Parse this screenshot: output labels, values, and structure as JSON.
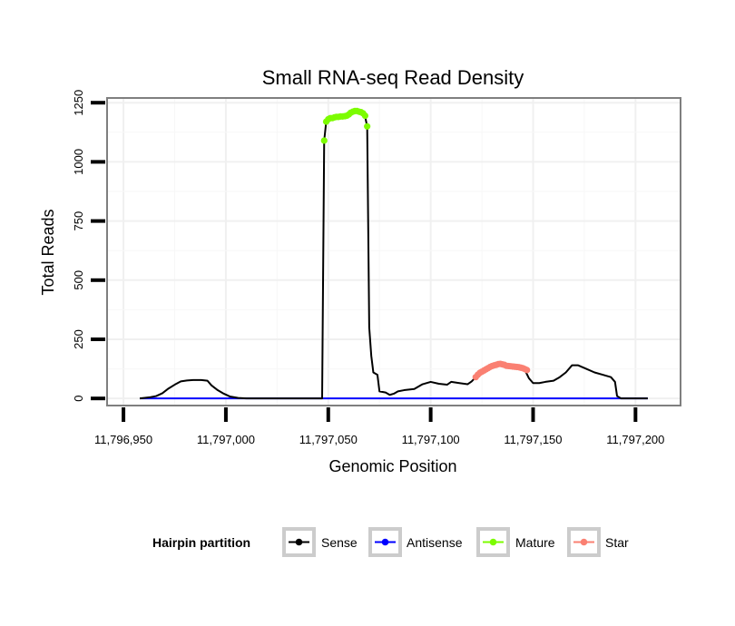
{
  "chart_data": {
    "type": "line",
    "title": "Small RNA-seq Read Density",
    "xlabel": "Genomic Position",
    "ylabel": "Total Reads",
    "xlim": [
      11796942,
      11797222
    ],
    "ylim": [
      -30,
      1270
    ],
    "x_ticks": [
      11796950,
      11797000,
      11797050,
      11797100,
      11797150,
      11797200
    ],
    "x_tick_labels": [
      "11,796,950",
      "11,797,000",
      "11,797,050",
      "11,797,100",
      "11,797,150",
      "11,797,200"
    ],
    "y_ticks": [
      0,
      250,
      500,
      750,
      1000,
      1250
    ],
    "y_tick_labels": [
      "0",
      "250",
      "500",
      "750",
      "1000",
      "1250"
    ],
    "grid": true,
    "legend": {
      "title": "Hairpin partition",
      "position": "bottom",
      "entries": [
        {
          "name": "Sense",
          "color": "#000000"
        },
        {
          "name": "Antisense",
          "color": "#0000ff"
        },
        {
          "name": "Mature",
          "color": "#7cfc00"
        },
        {
          "name": "Star",
          "color": "#fa8072"
        }
      ]
    },
    "series": [
      {
        "name": "Sense",
        "style": "line",
        "color": "#000000",
        "points": [
          [
            11796958,
            0
          ],
          [
            11796963,
            5
          ],
          [
            11796966,
            10
          ],
          [
            11796969,
            22
          ],
          [
            11796972,
            42
          ],
          [
            11796975,
            58
          ],
          [
            11796978,
            72
          ],
          [
            11796981,
            76
          ],
          [
            11796984,
            78
          ],
          [
            11796988,
            78
          ],
          [
            11796991,
            75
          ],
          [
            11796993,
            55
          ],
          [
            11796996,
            35
          ],
          [
            11796999,
            20
          ],
          [
            11797002,
            8
          ],
          [
            11797006,
            2
          ],
          [
            11797010,
            0
          ],
          [
            11797047,
            0
          ],
          [
            11797048,
            1090
          ],
          [
            11797049,
            1170
          ],
          [
            11797052,
            1190
          ],
          [
            11797056,
            1195
          ],
          [
            11797060,
            1200
          ],
          [
            11797063,
            1215
          ],
          [
            11797066,
            1210
          ],
          [
            11797068,
            1190
          ],
          [
            11797069,
            1150
          ],
          [
            11797070,
            300
          ],
          [
            11797071,
            180
          ],
          [
            11797072,
            110
          ],
          [
            11797074,
            100
          ],
          [
            11797075,
            30
          ],
          [
            11797078,
            25
          ],
          [
            11797080,
            15
          ],
          [
            11797082,
            20
          ],
          [
            11797084,
            30
          ],
          [
            11797087,
            35
          ],
          [
            11797092,
            40
          ],
          [
            11797096,
            60
          ],
          [
            11797100,
            70
          ],
          [
            11797104,
            62
          ],
          [
            11797108,
            58
          ],
          [
            11797110,
            70
          ],
          [
            11797114,
            65
          ],
          [
            11797118,
            60
          ],
          [
            11797120,
            72
          ],
          [
            11797122,
            90
          ],
          [
            11797126,
            115
          ],
          [
            11797130,
            135
          ],
          [
            11797134,
            145
          ],
          [
            11797138,
            135
          ],
          [
            11797142,
            125
          ],
          [
            11797146,
            120
          ],
          [
            11797148,
            85
          ],
          [
            11797150,
            65
          ],
          [
            11797153,
            65
          ],
          [
            11797156,
            70
          ],
          [
            11797160,
            75
          ],
          [
            11797163,
            90
          ],
          [
            11797166,
            110
          ],
          [
            11797169,
            140
          ],
          [
            11797172,
            140
          ],
          [
            11797176,
            125
          ],
          [
            11797180,
            110
          ],
          [
            11797184,
            100
          ],
          [
            11797188,
            90
          ],
          [
            11797190,
            70
          ],
          [
            11797191,
            10
          ],
          [
            11797193,
            0
          ],
          [
            11797206,
            0
          ]
        ]
      },
      {
        "name": "Antisense",
        "style": "line",
        "color": "#0000ff",
        "points": [
          [
            11796958,
            0
          ],
          [
            11797206,
            0
          ]
        ]
      },
      {
        "name": "Mature",
        "style": "points",
        "color": "#7cfc00",
        "points": [
          [
            11797048,
            1090
          ],
          [
            11797049,
            1170
          ],
          [
            11797050,
            1180
          ],
          [
            11797051,
            1185
          ],
          [
            11797052,
            1185
          ],
          [
            11797053,
            1188
          ],
          [
            11797054,
            1190
          ],
          [
            11797055,
            1190
          ],
          [
            11797056,
            1192
          ],
          [
            11797057,
            1192
          ],
          [
            11797058,
            1193
          ],
          [
            11797059,
            1195
          ],
          [
            11797060,
            1200
          ],
          [
            11797061,
            1208
          ],
          [
            11797062,
            1212
          ],
          [
            11797063,
            1215
          ],
          [
            11797064,
            1215
          ],
          [
            11797065,
            1212
          ],
          [
            11797066,
            1210
          ],
          [
            11797067,
            1205
          ],
          [
            11797068,
            1195
          ],
          [
            11797069,
            1150
          ]
        ]
      },
      {
        "name": "Star",
        "style": "points",
        "color": "#fa8072",
        "points": [
          [
            11797122,
            90
          ],
          [
            11797123,
            100
          ],
          [
            11797124,
            108
          ],
          [
            11797125,
            113
          ],
          [
            11797126,
            118
          ],
          [
            11797127,
            123
          ],
          [
            11797128,
            128
          ],
          [
            11797129,
            133
          ],
          [
            11797130,
            137
          ],
          [
            11797131,
            140
          ],
          [
            11797132,
            142
          ],
          [
            11797133,
            145
          ],
          [
            11797134,
            146
          ],
          [
            11797135,
            144
          ],
          [
            11797136,
            142
          ],
          [
            11797137,
            138
          ],
          [
            11797138,
            137
          ],
          [
            11797139,
            136
          ],
          [
            11797140,
            135
          ],
          [
            11797141,
            134
          ],
          [
            11797142,
            133
          ],
          [
            11797143,
            132
          ],
          [
            11797144,
            130
          ],
          [
            11797145,
            128
          ],
          [
            11797146,
            124
          ],
          [
            11797147,
            120
          ]
        ]
      }
    ]
  }
}
